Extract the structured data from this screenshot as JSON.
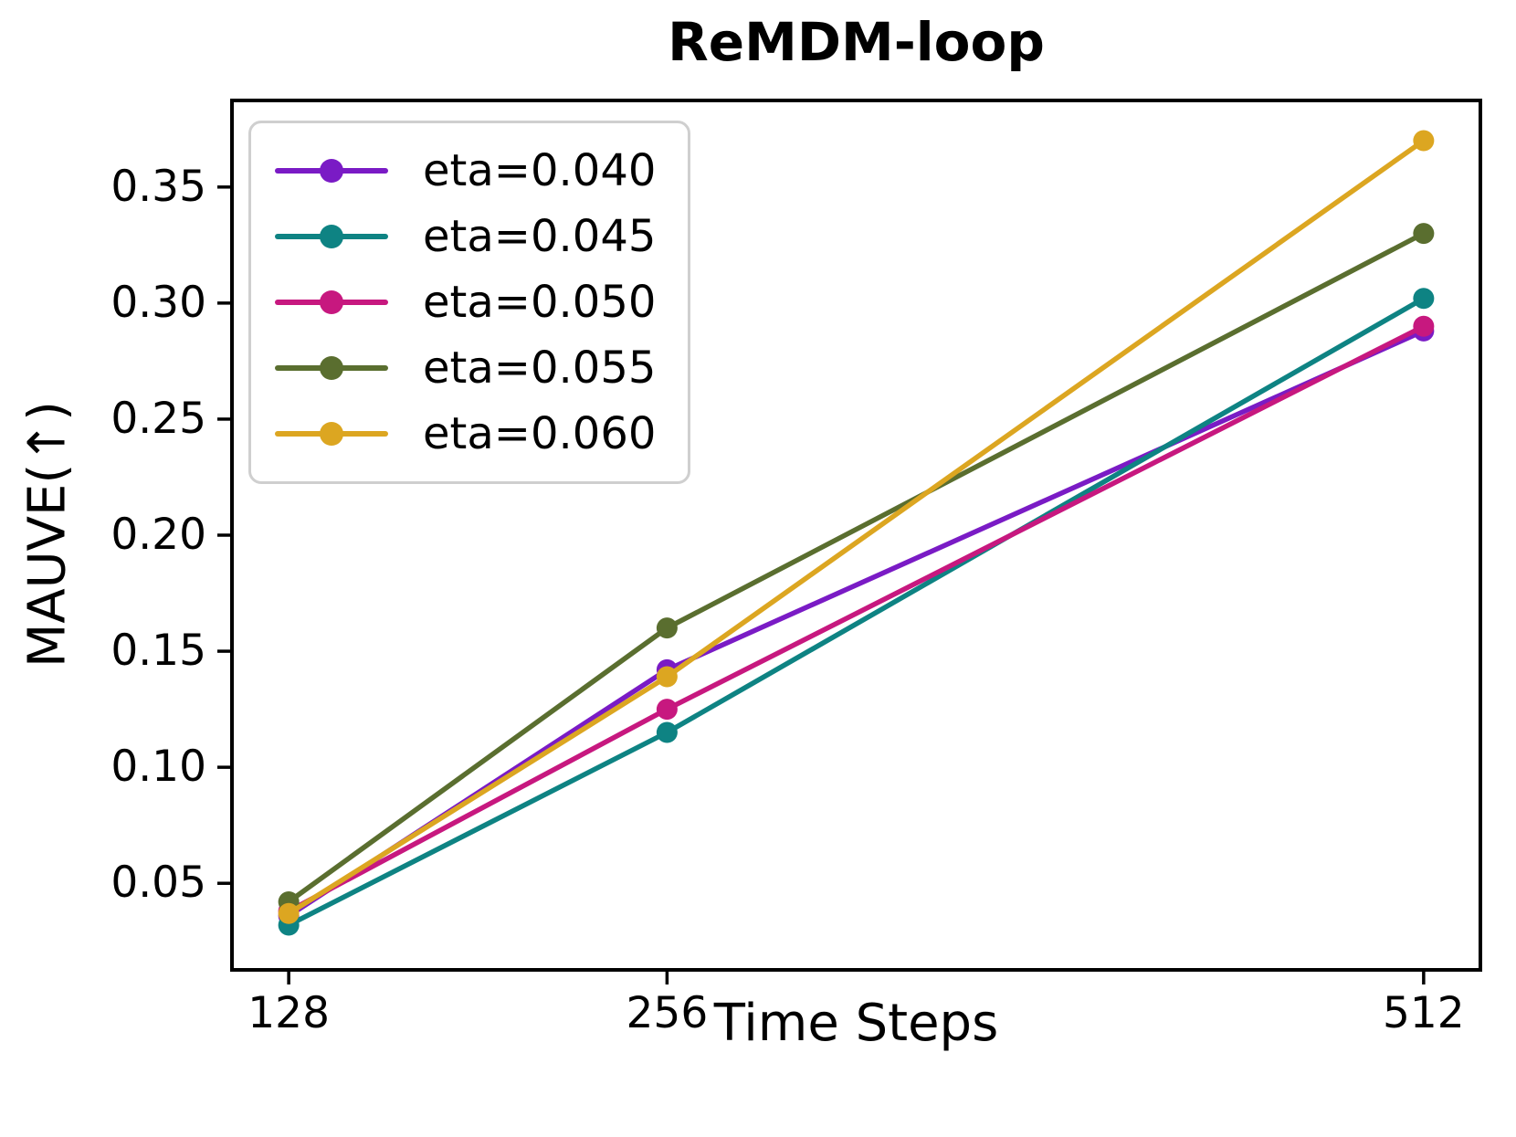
{
  "chart_data": {
    "type": "line",
    "title": "ReMDM-loop",
    "xlabel": "Time Steps",
    "ylabel": "MAUVE(↑)",
    "x": [
      128,
      256,
      512
    ],
    "x_tick_labels": [
      "128",
      "256",
      "512"
    ],
    "y_ticks": [
      0.05,
      0.1,
      0.15,
      0.2,
      0.25,
      0.3,
      0.35
    ],
    "y_tick_labels": [
      "0.05",
      "0.10",
      "0.15",
      "0.20",
      "0.25",
      "0.30",
      "0.35"
    ],
    "xlim": [
      108.8,
      531.2
    ],
    "ylim": [
      0.0127,
      0.3873
    ],
    "grid": false,
    "legend_position": "upper-left",
    "axis_color": "#000000",
    "legend_border_color": "#cfcfcf",
    "series": [
      {
        "name": "eta=0.040",
        "color": "#7A1BC5",
        "values": [
          0.036,
          0.142,
          0.288
        ]
      },
      {
        "name": "eta=0.045",
        "color": "#0E8383",
        "values": [
          0.032,
          0.115,
          0.302
        ]
      },
      {
        "name": "eta=0.050",
        "color": "#C7187F",
        "values": [
          0.038,
          0.125,
          0.29
        ]
      },
      {
        "name": "eta=0.055",
        "color": "#5A6E2F",
        "values": [
          0.042,
          0.16,
          0.33
        ]
      },
      {
        "name": "eta=0.060",
        "color": "#DCA621",
        "values": [
          0.037,
          0.139,
          0.37
        ]
      }
    ]
  }
}
